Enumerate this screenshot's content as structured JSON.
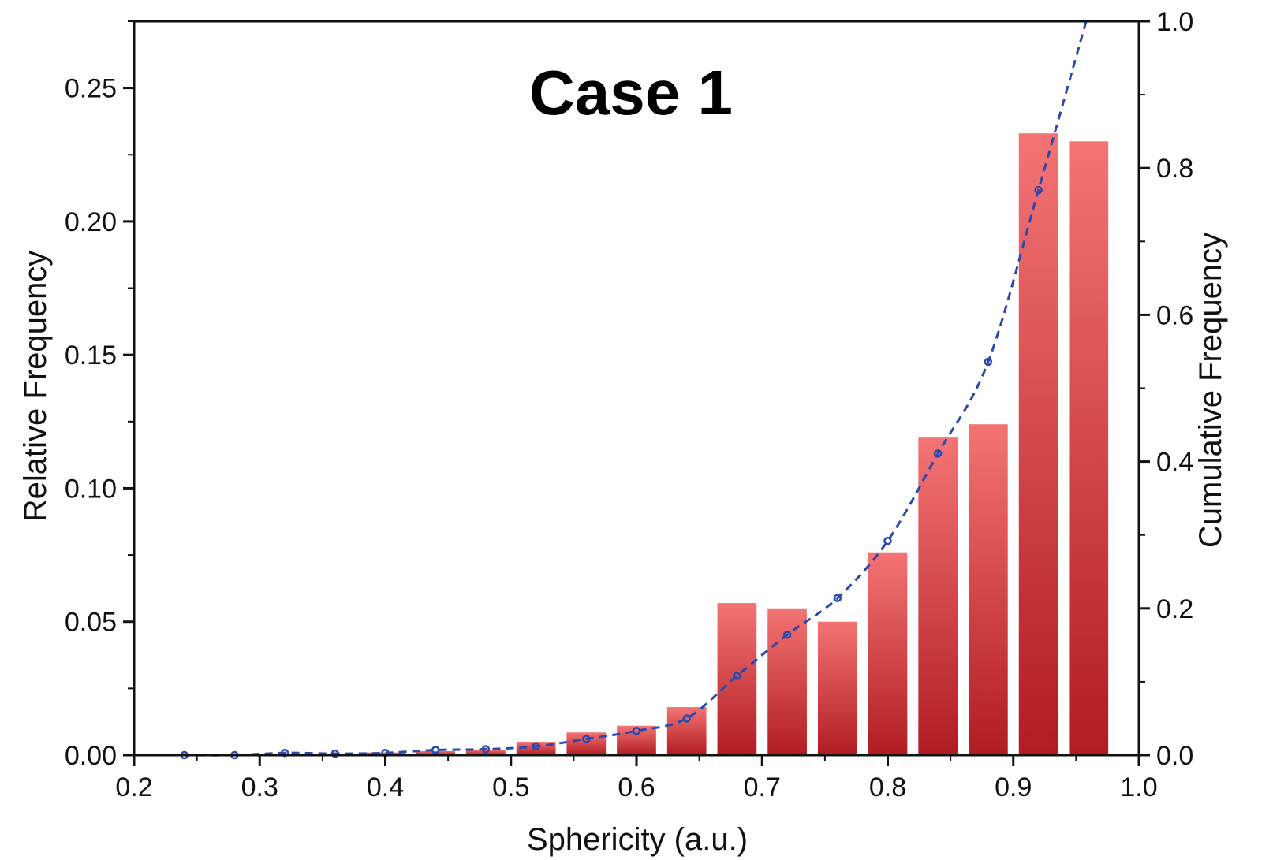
{
  "chart_data": {
    "type": "bar",
    "title": "Case 1",
    "xlabel": "Sphericity (a.u.)",
    "ylabel": "Relative Frequency",
    "y2label": "Cumulative Frequency",
    "xlim": [
      0.2,
      1.0
    ],
    "ylim": [
      0,
      0.275
    ],
    "y2lim": [
      0,
      1.0
    ],
    "x_ticks": [
      "0.2",
      "0.3",
      "0.4",
      "0.5",
      "0.6",
      "0.7",
      "0.8",
      "0.9",
      "1.0"
    ],
    "y_ticks": [
      "0.00",
      "0.05",
      "0.10",
      "0.15",
      "0.20",
      "0.25"
    ],
    "y2_ticks": [
      "0.0",
      "0.2",
      "0.4",
      "0.6",
      "0.8",
      "1.0"
    ],
    "grid": false,
    "series": [
      {
        "type": "bar",
        "axis": "left",
        "color": "#e0484d",
        "x": [
          0.24,
          0.28,
          0.32,
          0.36,
          0.4,
          0.44,
          0.48,
          0.52,
          0.56,
          0.6,
          0.64,
          0.68,
          0.72,
          0.76,
          0.8,
          0.84,
          0.88,
          0.92,
          0.96
        ],
        "values": [
          0.0,
          0.0,
          0.0005,
          0.0005,
          0.001,
          0.0015,
          0.002,
          0.005,
          0.0085,
          0.011,
          0.018,
          0.057,
          0.055,
          0.05,
          0.076,
          0.119,
          0.124,
          0.233,
          0.23
        ]
      },
      {
        "type": "line",
        "axis": "right",
        "color": "#2a48b0",
        "style": "dashed",
        "x": [
          0.24,
          0.28,
          0.32,
          0.36,
          0.4,
          0.44,
          0.48,
          0.52,
          0.56,
          0.6,
          0.64,
          0.68,
          0.72,
          0.76,
          0.8,
          0.84,
          0.88,
          0.92
        ],
        "values": [
          0.0,
          0.0,
          0.003,
          0.002,
          0.003,
          0.007,
          0.008,
          0.012,
          0.022,
          0.033,
          0.05,
          0.108,
          0.164,
          0.214,
          0.292,
          0.411,
          0.536,
          0.77
        ],
        "end_x": 0.958,
        "end_value": 1.0
      }
    ]
  }
}
